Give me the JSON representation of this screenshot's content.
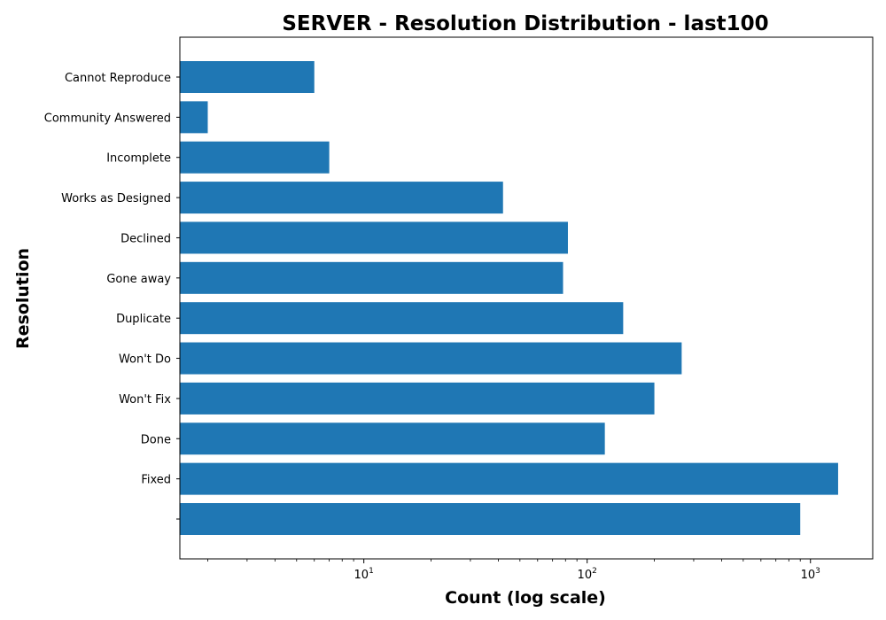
{
  "chart_data": {
    "type": "bar",
    "orientation": "horizontal",
    "title": "SERVER - Resolution Distribution - last100",
    "xlabel": "Count (log scale)",
    "ylabel": "Resolution",
    "x_scale": "log",
    "xlim": [
      1.5,
      1900
    ],
    "x_ticks": [
      {
        "base": "10",
        "exp": "1",
        "value": 10
      },
      {
        "base": "10",
        "exp": "2",
        "value": 100
      },
      {
        "base": "10",
        "exp": "3",
        "value": 1000
      }
    ],
    "grid": false,
    "bar_color": "#1f77b4",
    "categories": [
      "Cannot Reproduce",
      "Community Answered",
      "Incomplete",
      "Works as Designed",
      "Declined",
      "Gone away",
      "Duplicate",
      "Won't Do",
      "Won't Fix",
      "Done",
      "Fixed",
      ""
    ],
    "values": [
      6,
      2,
      7,
      42,
      82,
      78,
      145,
      265,
      200,
      120,
      1330,
      900
    ]
  }
}
